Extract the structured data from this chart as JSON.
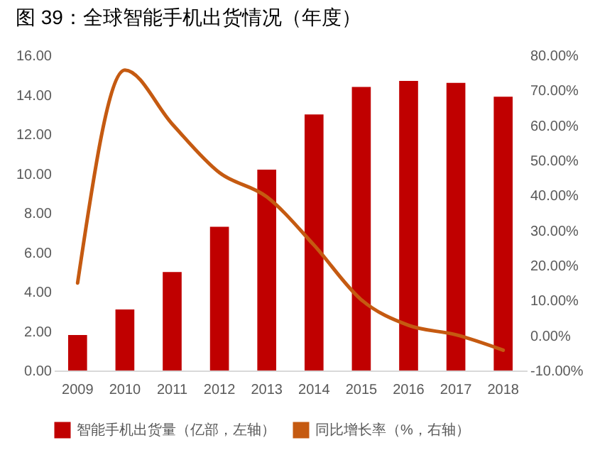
{
  "chart_data": {
    "type": "bar",
    "title": "图 39：全球智能手机出货情况（年度）",
    "categories": [
      "2009",
      "2010",
      "2011",
      "2012",
      "2013",
      "2014",
      "2015",
      "2016",
      "2017",
      "2018"
    ],
    "series": [
      {
        "name": "智能手机出货量（亿部，左轴）",
        "type": "bar",
        "color": "#c00000",
        "values": [
          1.8,
          3.1,
          5.0,
          7.3,
          10.2,
          13.0,
          14.4,
          14.7,
          14.6,
          13.9
        ]
      },
      {
        "name": "同比增长率（%，右轴）",
        "type": "line",
        "axis": "y2",
        "color": "#c55a11",
        "values": [
          15.0,
          75.8,
          60.4,
          46.5,
          39.6,
          25.8,
          10.2,
          2.9,
          0.2,
          -4.2
        ]
      }
    ],
    "ylim": [
      0,
      16
    ],
    "yticks": [
      {
        "value": 0,
        "label": "0.00"
      },
      {
        "value": 2,
        "label": "2.00"
      },
      {
        "value": 4,
        "label": "4.00"
      },
      {
        "value": 6,
        "label": "6.00"
      },
      {
        "value": 8,
        "label": "8.00"
      },
      {
        "value": 10,
        "label": "10.00"
      },
      {
        "value": 12,
        "label": "12.00"
      },
      {
        "value": 14,
        "label": "14.00"
      },
      {
        "value": 16,
        "label": "16.00"
      }
    ],
    "y2lim": [
      -10,
      80
    ],
    "y2ticks": [
      {
        "value": -10,
        "label": "-10.00%"
      },
      {
        "value": 0,
        "label": "0.00%"
      },
      {
        "value": 10,
        "label": "10.00%"
      },
      {
        "value": 20,
        "label": "20.00%"
      },
      {
        "value": 30,
        "label": "30.00%"
      },
      {
        "value": 40,
        "label": "40.00%"
      },
      {
        "value": 50,
        "label": "50.00%"
      },
      {
        "value": 60,
        "label": "60.00%"
      },
      {
        "value": 70,
        "label": "70.00%"
      },
      {
        "value": 80,
        "label": "80.00%"
      }
    ],
    "grid": false,
    "legend": "bottom",
    "marker": "none",
    "line_style": "solid"
  }
}
